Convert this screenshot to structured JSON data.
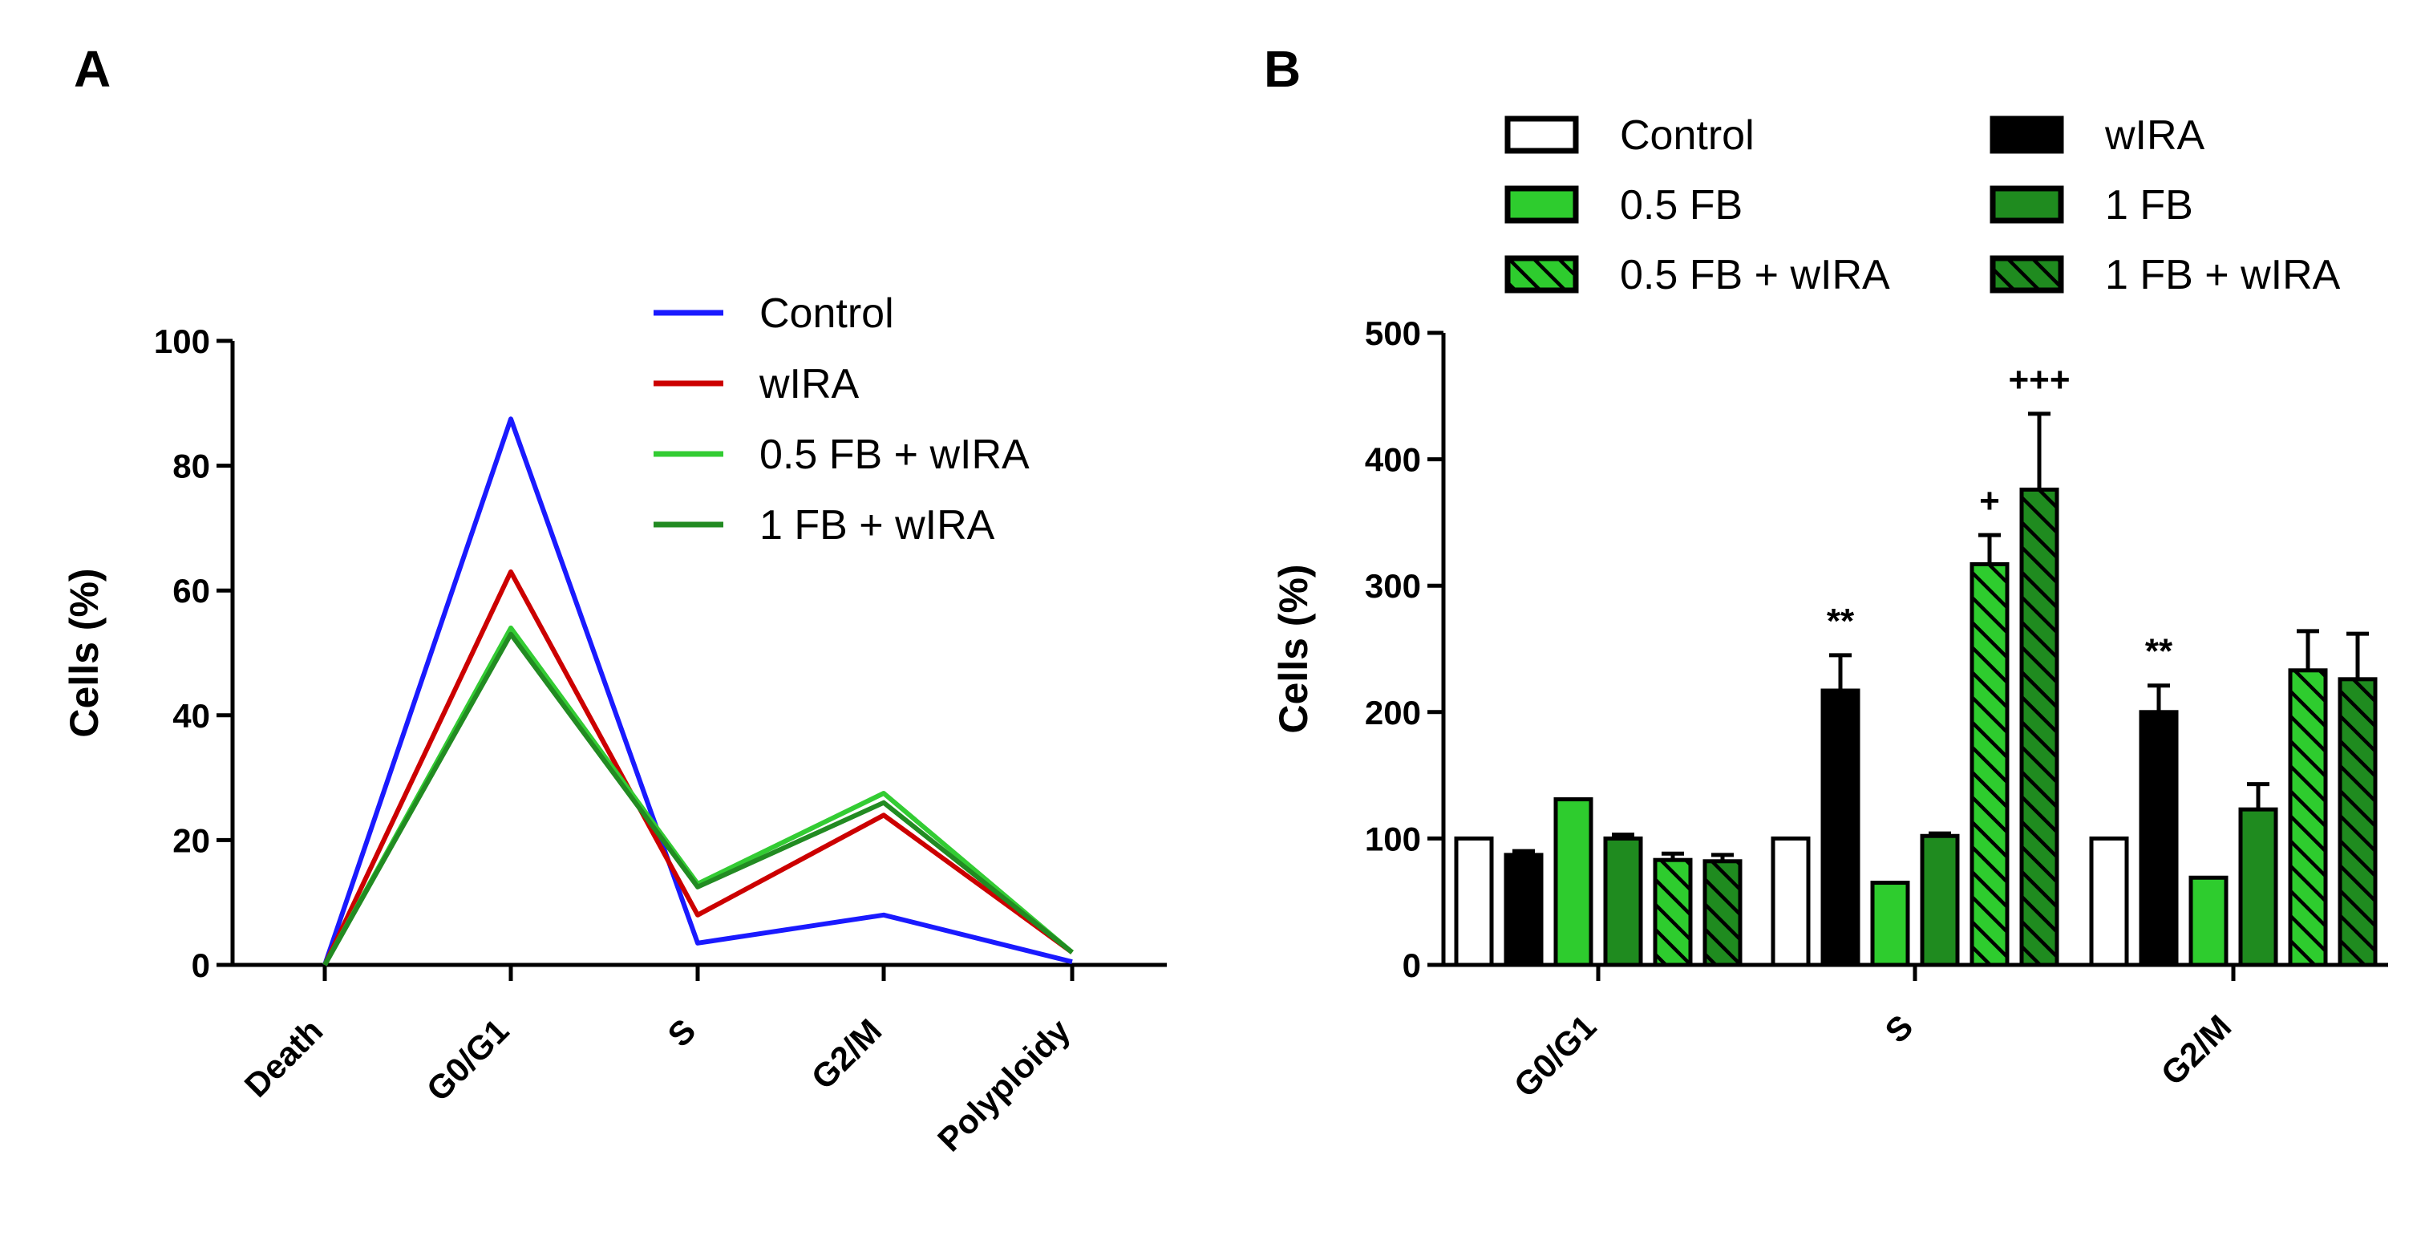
{
  "chart_data": [
    {
      "panel": "A",
      "type": "line",
      "ylabel": "Cells (%)",
      "xlabel": "",
      "ylim": [
        0,
        100
      ],
      "yticks": [
        0,
        20,
        40,
        60,
        80,
        100
      ],
      "categories": [
        "Death",
        "G0/G1",
        "S",
        "G2/M",
        "Polyploidy"
      ],
      "legend_position": "top-right",
      "series": [
        {
          "name": "Control",
          "color": "#1a1aff",
          "values": [
            0,
            87.5,
            3.5,
            8,
            0.5
          ]
        },
        {
          "name": "wIRA",
          "color": "#cc0000",
          "values": [
            0,
            63,
            8,
            24,
            2
          ]
        },
        {
          "name": "0.5 FB + wIRA",
          "color": "#33cc33",
          "values": [
            0,
            54,
            13,
            27.5,
            2
          ]
        },
        {
          "name": "1 FB + wIRA",
          "color": "#228b22",
          "values": [
            0,
            53,
            12.5,
            26,
            2
          ]
        }
      ]
    },
    {
      "panel": "B",
      "type": "bar",
      "ylabel": "Cells (%)",
      "xlabel": "",
      "ylim": [
        0,
        500
      ],
      "yticks": [
        0,
        100,
        200,
        300,
        400,
        500
      ],
      "categories": [
        "G0/G1",
        "S",
        "G2/M"
      ],
      "legend_position": "top",
      "series": [
        {
          "name": "Control",
          "fill": "#ffffff",
          "hatch": false,
          "values": [
            100,
            100,
            100
          ],
          "errors": [
            0,
            0,
            0
          ]
        },
        {
          "name": "wIRA",
          "fill": "#000000",
          "hatch": false,
          "values": [
            87,
            217,
            200
          ],
          "errors": [
            3,
            28,
            21
          ]
        },
        {
          "name": "0.5 FB",
          "fill": "#2ecc2e",
          "hatch": false,
          "values": [
            131,
            65,
            69
          ],
          "errors": [
            0,
            0,
            0
          ]
        },
        {
          "name": "1 FB",
          "fill": "#1f8b1f",
          "hatch": false,
          "values": [
            100,
            102,
            123
          ],
          "errors": [
            3,
            2,
            20
          ]
        },
        {
          "name": "0.5 FB + wIRA",
          "fill": "#2ecc2e",
          "hatch": true,
          "values": [
            83,
            317,
            233
          ],
          "errors": [
            5,
            23,
            31
          ]
        },
        {
          "name": "1 FB + wIRA",
          "fill": "#1f8b1f",
          "hatch": true,
          "values": [
            82,
            376,
            226
          ],
          "errors": [
            5,
            60,
            36
          ]
        }
      ],
      "annotations": [
        {
          "text": "**",
          "category": "S",
          "series": "wIRA"
        },
        {
          "text": "+",
          "category": "S",
          "series": "0.5 FB + wIRA"
        },
        {
          "text": "+++",
          "category": "S",
          "series": "1 FB + wIRA"
        },
        {
          "text": "**",
          "category": "G2/M",
          "series": "wIRA"
        }
      ]
    }
  ]
}
